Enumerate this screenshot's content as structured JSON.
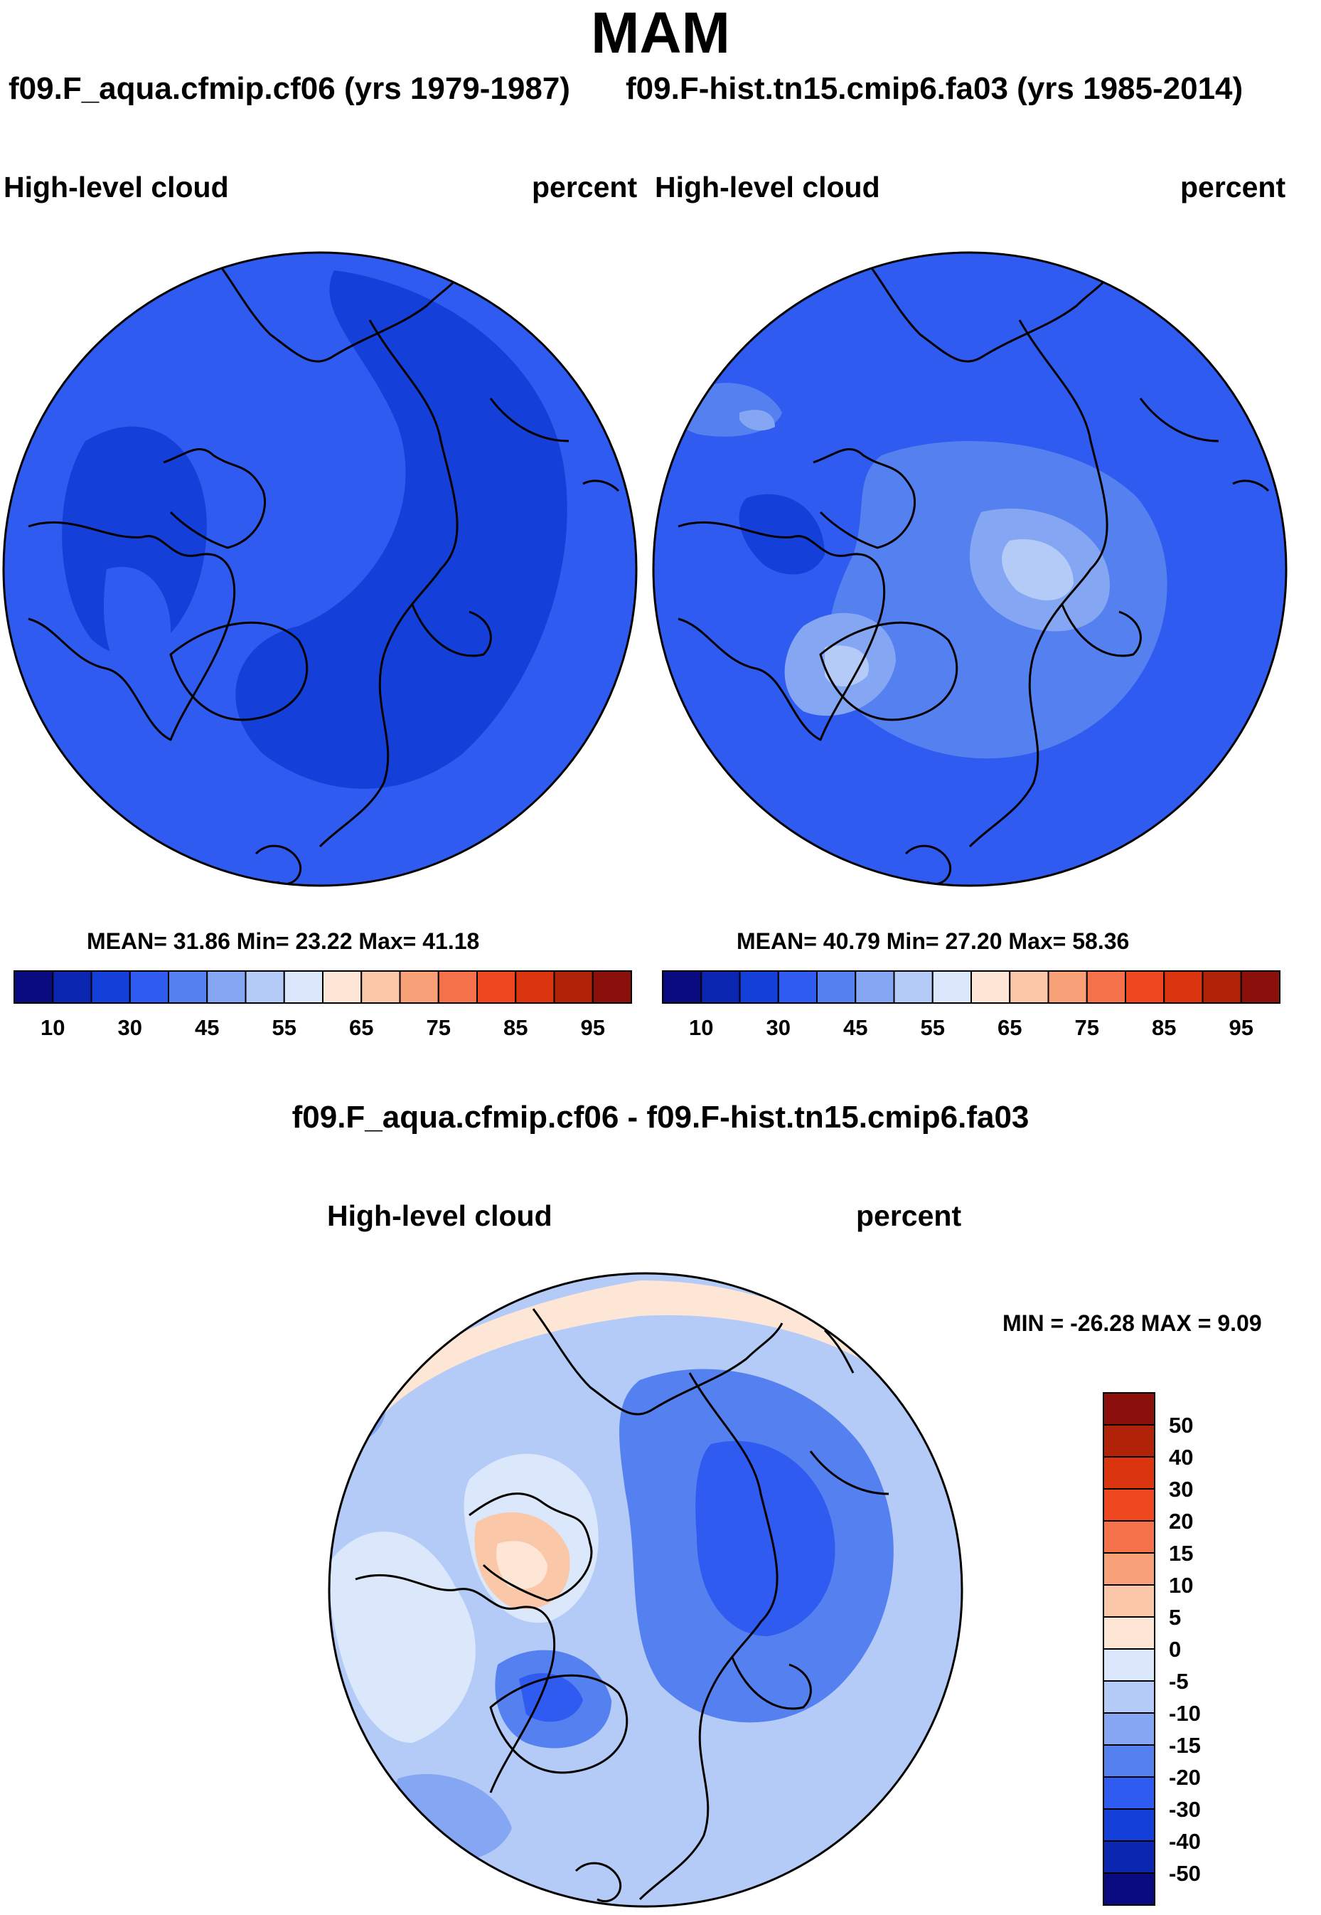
{
  "title": "MAM",
  "panels": [
    {
      "case_label": "f09.F_aqua.cfmip.cf06 (yrs 1979-1987)",
      "variable": "High-level cloud",
      "units": "percent",
      "stats": "MEAN=  31.86  Min=  23.22  Max=  41.18"
    },
    {
      "case_label": "f09.F-hist.tn15.cmip6.fa03 (yrs 1985-2014)",
      "variable": "High-level cloud",
      "units": "percent",
      "stats": "MEAN=  40.79  Min=  27.20  Max=  58.36"
    }
  ],
  "diff_panel": {
    "title": "f09.F_aqua.cfmip.cf06 - f09.F-hist.tn15.cmip6.fa03",
    "variable": "High-level cloud",
    "units": "percent",
    "minmax": "MIN = -26.28 MAX =   9.09"
  },
  "colorbar_main": {
    "tick_labels": [
      "10",
      "30",
      "45",
      "55",
      "65",
      "75",
      "85",
      "95"
    ],
    "colors": [
      "#0a0a80",
      "#0b26b0",
      "#1440d9",
      "#2f5bf0",
      "#5580f0",
      "#85a6f2",
      "#b4cbf8",
      "#dbe8fb",
      "#fde6d6",
      "#fbc7a9",
      "#f8a078",
      "#f5714a",
      "#ef4820",
      "#db350f",
      "#b02308",
      "#8b0f0b"
    ]
  },
  "colorbar_diff": {
    "tick_labels": [
      "50",
      "40",
      "30",
      "20",
      "15",
      "10",
      "5",
      "0",
      "-5",
      "-10",
      "-15",
      "-20",
      "-30",
      "-40",
      "-50"
    ],
    "colors": [
      "#8b0f0b",
      "#b02308",
      "#db350f",
      "#ef4820",
      "#f5714a",
      "#f8a078",
      "#fbc7a9",
      "#fde6d6",
      "#dbe8fb",
      "#b4cbf8",
      "#85a6f2",
      "#5580f0",
      "#2f5bf0",
      "#1440d9",
      "#0b26b0",
      "#0a0a80"
    ]
  },
  "chart_data": [
    {
      "type": "heatmap",
      "title": "High-level cloud",
      "case": "f09.F_aqua.cfmip.cf06 (yrs 1979-1987)",
      "units": "percent",
      "season": "MAM",
      "mean": 31.86,
      "min": 23.22,
      "max": 41.18,
      "levels": [
        10,
        15,
        20,
        25,
        30,
        35,
        40,
        45,
        50,
        55,
        60,
        65,
        70,
        75,
        80,
        85,
        90,
        95
      ]
    },
    {
      "type": "heatmap",
      "title": "High-level cloud",
      "case": "f09.F-hist.tn15.cmip6.fa03 (yrs 1985-2014)",
      "units": "percent",
      "season": "MAM",
      "mean": 40.79,
      "min": 27.2,
      "max": 58.36,
      "levels": [
        10,
        15,
        20,
        25,
        30,
        35,
        40,
        45,
        50,
        55,
        60,
        65,
        70,
        75,
        80,
        85,
        90,
        95
      ]
    },
    {
      "type": "heatmap",
      "title": "High-level cloud",
      "case": "f09.F_aqua.cfmip.cf06 - f09.F-hist.tn15.cmip6.fa03",
      "units": "percent",
      "min": -26.28,
      "max": 9.09,
      "levels": [
        -50,
        -40,
        -30,
        -20,
        -15,
        -10,
        -5,
        0,
        5,
        10,
        15,
        20,
        30,
        40,
        50
      ]
    }
  ]
}
